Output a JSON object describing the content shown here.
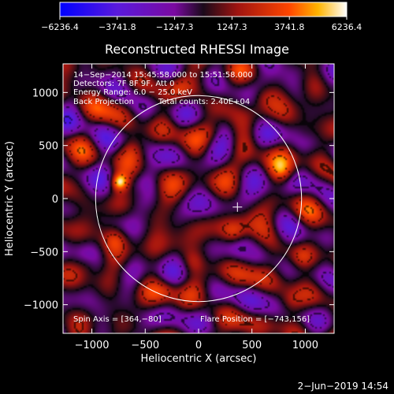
{
  "chart_data": {
    "type": "heatmap",
    "title": "Reconstructed RHESSI Image",
    "xlabel": "Heliocentric X (arcsec)",
    "ylabel": "Heliocentric Y (arcsec)",
    "xlim": [
      -1270,
      1270
    ],
    "ylim": [
      -1270,
      1270
    ],
    "x_ticks": [
      -1000,
      -500,
      0,
      500,
      1000
    ],
    "y_ticks": [
      -1000,
      -500,
      0,
      500,
      1000
    ],
    "x_tick_labels": [
      "−1000",
      "−500",
      "0",
      "500",
      "1000"
    ],
    "y_tick_labels": [
      "−1000",
      "−500",
      "0",
      "500",
      "1000"
    ],
    "colorbar": {
      "range": [
        -6236.4,
        6236.4
      ],
      "tick_values": [
        -6236.4,
        -3741.8,
        -1247.3,
        1247.3,
        3741.8,
        6236.4
      ],
      "tick_labels": [
        "−6236.4",
        "−3741.8",
        "−1247.3",
        "1247.3",
        "3741.8",
        "6236.4"
      ]
    },
    "solar_limb": {
      "center": [
        0,
        0
      ],
      "radius": 965
    },
    "sun_center_marker": [
      364,
      -80
    ],
    "annotations": {
      "time_range": "14−Sep−2014 15:45:58.000 to 15:51:58.000",
      "detectors": "Detectors: 7F 8F 9F, Att 0",
      "energy": "Energy Range: 6.0 − 25.0 keV",
      "method": "Back Projection",
      "counts": "Total counts: 2.40E+04",
      "spin_axis": "Spin Axis = [364,−80]",
      "flare_position": "Flare Position = [−743,156]"
    },
    "peaks": [
      {
        "x": -743,
        "y": 156,
        "value": 6236.4
      },
      {
        "x": 780,
        "y": 250,
        "value": 3300
      },
      {
        "x": 330,
        "y": -320,
        "value": 3000
      },
      {
        "x": 470,
        "y": -500,
        "value": 2600
      },
      {
        "x": -620,
        "y": 470,
        "value": 2600
      },
      {
        "x": -780,
        "y": -380,
        "value": 2800
      },
      {
        "x": 960,
        "y": -560,
        "value": 2600
      },
      {
        "x": -540,
        "y": 60,
        "value": 2600
      },
      {
        "x": 140,
        "y": 620,
        "value": 2500
      },
      {
        "x": -60,
        "y": -600,
        "value": 2400
      },
      {
        "x": 860,
        "y": -980,
        "value": 2500
      },
      {
        "x": -1030,
        "y": -620,
        "value": 2400
      },
      {
        "x": 600,
        "y": 960,
        "value": 2300
      },
      {
        "x": -300,
        "y": -860,
        "value": 2300
      },
      {
        "x": 1000,
        "y": 620,
        "value": 2100
      },
      {
        "x": -180,
        "y": 1060,
        "value": 2000
      }
    ]
  },
  "timestamp": "2−Jun−2019 14:54",
  "colors": {
    "background": "#000000",
    "colormap": [
      "#0000ff",
      "#7a0aa0",
      "#1a0a1a",
      "#b01414",
      "#ff6a00",
      "#ffffff"
    ]
  }
}
